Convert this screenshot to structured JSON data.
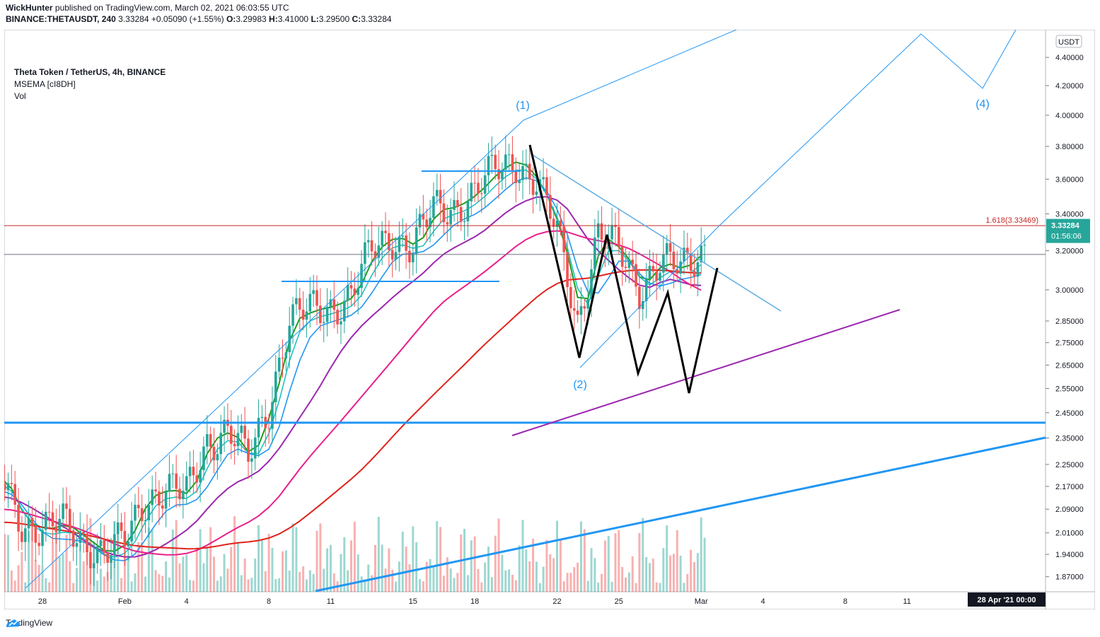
{
  "header": {
    "line1_author": "WickHunter",
    "line1_rest": " published on TradingView.com, March 02, 2021 06:03:55 UTC",
    "symbol": "BINANCE:THETAUSDT, 240",
    "last": "3.33284",
    "change": "+0.05090 (+1.55%)",
    "o_label": "O:",
    "o": "3.29983",
    "h_label": "H:",
    "h": "3.41000",
    "l_label": "L:",
    "l": "3.29500",
    "c_label": "C:",
    "c": "3.33284"
  },
  "legend": {
    "title": "Theta Token / TetherUS, 4h, BINANCE",
    "indicator": "MSEMA [cI8DH]",
    "volume": "Vol"
  },
  "footer": {
    "brand": "TradingView"
  },
  "chart_data": {
    "type": "line",
    "title": "Theta Token / TetherUS, 4h, BINANCE",
    "scale": "log",
    "currency_badge": "USDT",
    "y_ticks": [
      "4.40000",
      "4.20000",
      "4.00000",
      "3.80000",
      "3.60000",
      "3.40000",
      "3.20000",
      "3.00000",
      "2.85000",
      "2.75000",
      "2.65000",
      "2.55000",
      "2.45000",
      "2.35000",
      "2.25000",
      "2.17000",
      "2.09000",
      "2.01000",
      "1.94000",
      "1.87000"
    ],
    "x_ticks": [
      "28",
      "Feb",
      "4",
      "8",
      "11",
      "15",
      "18",
      "22",
      "25",
      "Mar",
      "4",
      "8",
      "11"
    ],
    "time_badge": "28 Apr '21  00:00",
    "price_badge": "3.33284",
    "countdown_badge": "01:56:06",
    "fib_label": "1.618(3.33469)",
    "wave_labels": [
      "(1)",
      "(2)",
      "(4)"
    ],
    "price_path": [
      {
        "x": "Jan 26",
        "y": 2.2
      },
      {
        "x": "Jan 27",
        "y": 2.05
      },
      {
        "x": "Jan 28",
        "y": 2.02
      },
      {
        "x": "Jan 29",
        "y": 2.04
      },
      {
        "x": "Jan 30",
        "y": 1.99
      },
      {
        "x": "Jan 31",
        "y": 1.94
      },
      {
        "x": "Feb 1",
        "y": 1.98
      },
      {
        "x": "Feb 2",
        "y": 2.13
      },
      {
        "x": "Feb 3",
        "y": 2.16
      },
      {
        "x": "Feb 4",
        "y": 2.14
      },
      {
        "x": "Feb 5",
        "y": 2.34
      },
      {
        "x": "Feb 6",
        "y": 2.38
      },
      {
        "x": "Feb 7",
        "y": 2.27
      },
      {
        "x": "Feb 8",
        "y": 2.48
      },
      {
        "x": "Feb 9",
        "y": 2.85
      },
      {
        "x": "Feb 10",
        "y": 2.9
      },
      {
        "x": "Feb 11",
        "y": 2.92
      },
      {
        "x": "Feb 12",
        "y": 2.97
      },
      {
        "x": "Feb 13",
        "y": 3.2
      },
      {
        "x": "Feb 14",
        "y": 3.28
      },
      {
        "x": "Feb 15",
        "y": 3.22
      },
      {
        "x": "Feb 16",
        "y": 3.42
      },
      {
        "x": "Feb 17",
        "y": 3.44
      },
      {
        "x": "Feb 18",
        "y": 3.52
      },
      {
        "x": "Feb 19",
        "y": 3.65
      },
      {
        "x": "Feb 20",
        "y": 3.72
      },
      {
        "x": "Feb 21",
        "y": 3.58
      },
      {
        "x": "Feb 22",
        "y": 3.3
      },
      {
        "x": "Feb 23",
        "y": 2.85
      },
      {
        "x": "Feb 24",
        "y": 3.28
      },
      {
        "x": "Feb 25",
        "y": 3.2
      },
      {
        "x": "Feb 26",
        "y": 3.02
      },
      {
        "x": "Feb 27",
        "y": 3.14
      },
      {
        "x": "Feb 28",
        "y": 3.1
      },
      {
        "x": "Mar 1",
        "y": 3.2
      },
      {
        "x": "Mar 2",
        "y": 3.33
      }
    ],
    "series": [
      {
        "name": "MSEMA fast",
        "color": "#1b9e1b"
      },
      {
        "name": "MSEMA mid",
        "color": "#22c1c3"
      },
      {
        "name": "MSEMA slow",
        "color": "#2196f3"
      },
      {
        "name": "MA purple",
        "color": "#9c27b0"
      },
      {
        "name": "MA magenta",
        "color": "#e91e8c"
      },
      {
        "name": "MA red",
        "color": "#e0231c"
      }
    ],
    "horizontal_lines": [
      {
        "price": 2.41,
        "color": "#2196f3"
      },
      {
        "price": 3.335,
        "color": "#c62828"
      },
      {
        "price": 3.18,
        "color": "#6b7280"
      }
    ],
    "colors": {
      "up": "#26a69a",
      "down": "#ef5350",
      "axis": "#131722",
      "grid": "#ffffff"
    }
  }
}
